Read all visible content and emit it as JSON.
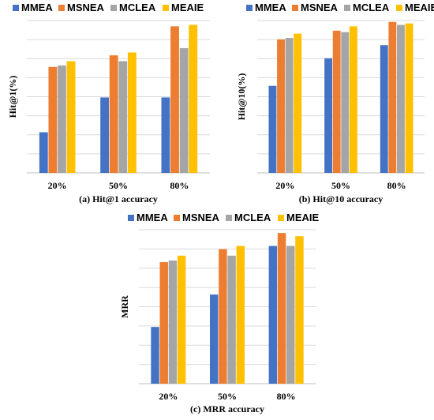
{
  "colors": {
    "MMEA": "#4472C4",
    "MSNEA": "#ED7D31",
    "MCLEA": "#A5A5A5",
    "MEAIE": "#FFC000",
    "grid": "#d9d9d9",
    "axis": "#bfbfbf"
  },
  "chart_data": [
    {
      "type": "bar",
      "categories": [
        "20%",
        "50%",
        "80%"
      ],
      "series": [
        {
          "name": "MMEA",
          "values": [
            2.8,
            5.2,
            5.2
          ]
        },
        {
          "name": "MSNEA",
          "values": [
            7.3,
            8.1,
            10.1
          ]
        },
        {
          "name": "MCLEA",
          "values": [
            7.4,
            7.7,
            8.6
          ]
        },
        {
          "name": "MEAIE",
          "values": [
            7.7,
            8.3,
            10.2
          ]
        }
      ],
      "ylabel": "Hit@1(%)",
      "caption": "(a) Hit@1 accuracy",
      "ylim": [
        0,
        10.5
      ],
      "grid": true,
      "legend": "top"
    },
    {
      "type": "bar",
      "categories": [
        "20%",
        "50%",
        "80%"
      ],
      "series": [
        {
          "name": "MMEA",
          "values": [
            6.0,
            7.9,
            8.8
          ]
        },
        {
          "name": "MSNEA",
          "values": [
            9.2,
            9.8,
            10.4
          ]
        },
        {
          "name": "MCLEA",
          "values": [
            9.3,
            9.7,
            10.2
          ]
        },
        {
          "name": "MEAIE",
          "values": [
            9.6,
            10.1,
            10.3
          ]
        }
      ],
      "ylabel": "Hit@10(%)",
      "caption": "(b) Hit@10 accuracy",
      "ylim": [
        0,
        10.5
      ],
      "grid": true,
      "legend": "top"
    },
    {
      "type": "bar",
      "categories": [
        "20%",
        "50%",
        "80%"
      ],
      "series": [
        {
          "name": "MMEA",
          "values": [
            3.5,
            5.5,
            8.5
          ]
        },
        {
          "name": "MSNEA",
          "values": [
            7.5,
            8.3,
            9.3
          ]
        },
        {
          "name": "MCLEA",
          "values": [
            7.6,
            7.9,
            8.5
          ]
        },
        {
          "name": "MEAIE",
          "values": [
            7.9,
            8.5,
            9.1
          ]
        }
      ],
      "ylabel": "MRR",
      "caption": "(c) MRR accuracy",
      "ylim": [
        0,
        9.5
      ],
      "grid": true,
      "legend": "top"
    }
  ]
}
